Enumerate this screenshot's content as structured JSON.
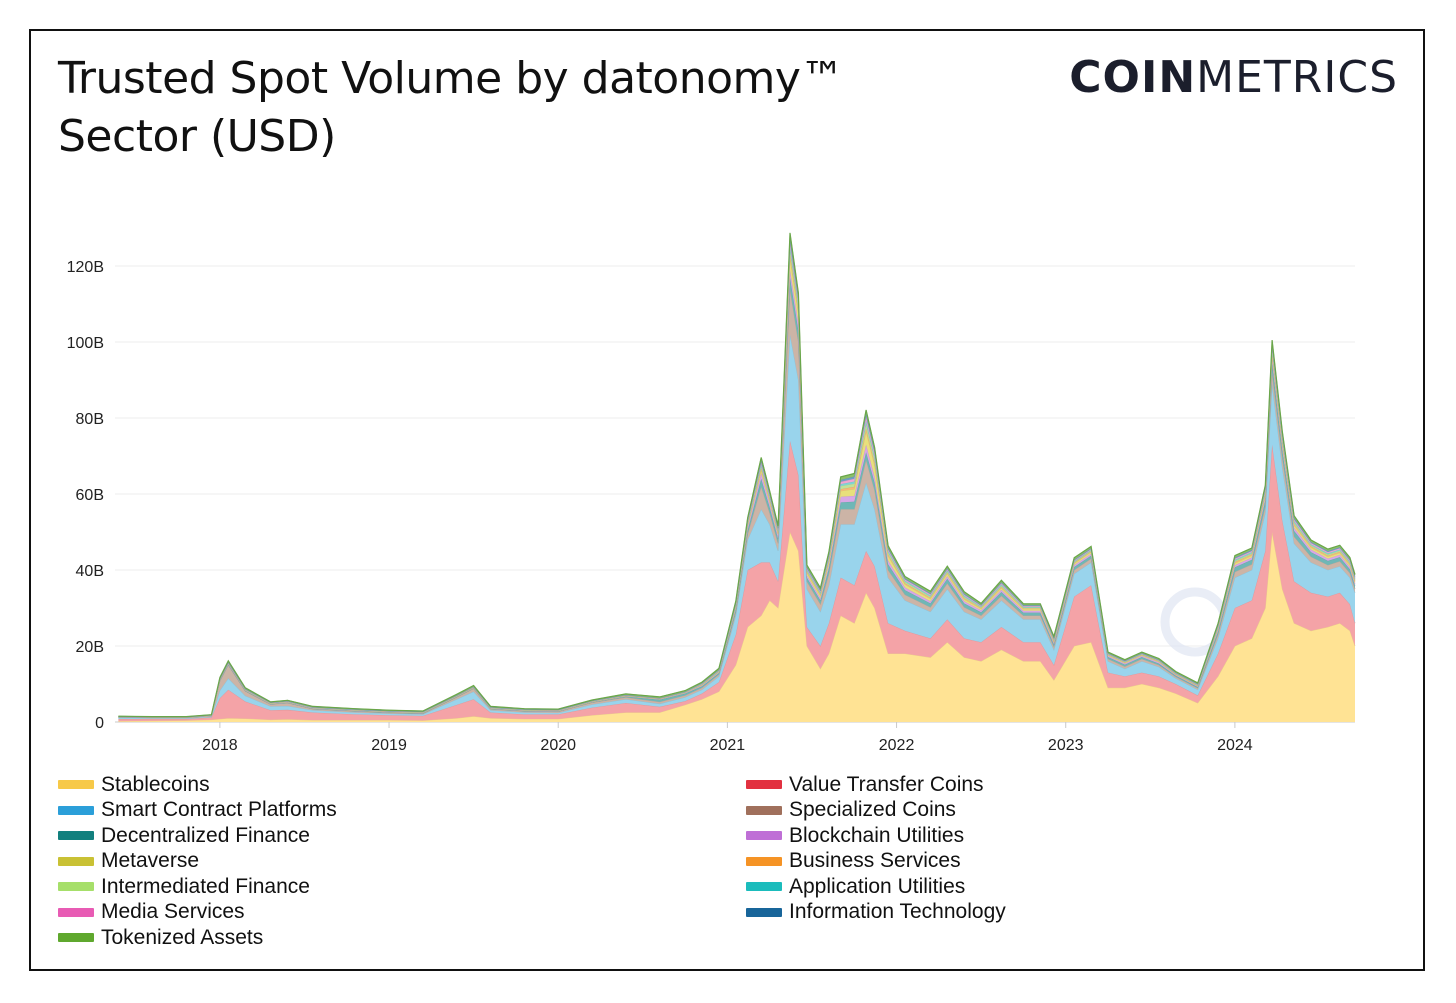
{
  "title": "Trusted Spot Volume by datonomy™ Sector (USD)",
  "logo": {
    "bold": "COIN",
    "light": "METRICS"
  },
  "chart_data": {
    "type": "area",
    "stacked": true,
    "title": "Trusted Spot Volume by datonomy™ Sector (USD)",
    "xlabel": "",
    "ylabel": "",
    "xlim": [
      2017.38,
      2024.71
    ],
    "ylim": [
      0,
      140
    ],
    "y_unit": "B",
    "y_ticks": [
      0,
      20,
      40,
      60,
      80,
      100,
      120
    ],
    "y_tick_labels": [
      "0",
      "20B",
      "40B",
      "60B",
      "80B",
      "100B",
      "120B"
    ],
    "x_ticks": [
      2018,
      2019,
      2020,
      2021,
      2022,
      2023,
      2024
    ],
    "x_tick_labels": [
      "2018",
      "2019",
      "2020",
      "2021",
      "2022",
      "2023",
      "2024"
    ],
    "grid": "horizontal",
    "legend_placement": "bottom",
    "x": [
      2017.4,
      2017.6,
      2017.8,
      2017.95,
      2018.0,
      2018.05,
      2018.15,
      2018.3,
      2018.4,
      2018.55,
      2018.8,
      2019.0,
      2019.2,
      2019.4,
      2019.5,
      2019.6,
      2019.8,
      2020.0,
      2020.2,
      2020.4,
      2020.6,
      2020.75,
      2020.85,
      2020.95,
      2021.05,
      2021.12,
      2021.2,
      2021.25,
      2021.3,
      2021.37,
      2021.42,
      2021.47,
      2021.55,
      2021.6,
      2021.67,
      2021.75,
      2021.82,
      2021.87,
      2021.95,
      2022.05,
      2022.2,
      2022.3,
      2022.4,
      2022.5,
      2022.62,
      2022.75,
      2022.85,
      2022.93,
      2023.05,
      2023.15,
      2023.25,
      2023.35,
      2023.45,
      2023.55,
      2023.65,
      2023.78,
      2023.9,
      2024.0,
      2024.1,
      2024.18,
      2024.22,
      2024.28,
      2024.35,
      2024.45,
      2024.55,
      2024.62,
      2024.68,
      2024.71
    ],
    "series": [
      {
        "name": "Stablecoins",
        "color": "#ffe394",
        "values": [
          0.2,
          0.3,
          0.4,
          0.6,
          0.8,
          1.0,
          0.9,
          0.6,
          0.7,
          0.5,
          0.5,
          0.5,
          0.4,
          1.0,
          1.5,
          1.0,
          0.8,
          0.8,
          1.8,
          2.5,
          2.5,
          4.5,
          6,
          8,
          15,
          25,
          28,
          32,
          30,
          50,
          45,
          20,
          14,
          18,
          28,
          26,
          34,
          30,
          18,
          18,
          17,
          21,
          17,
          16,
          19,
          16,
          16,
          11,
          20,
          21,
          9,
          9,
          10,
          9,
          7.5,
          5,
          12,
          20,
          22,
          30,
          50,
          35,
          26,
          24,
          25,
          26,
          24,
          20
        ]
      },
      {
        "name": "Value Transfer Coins",
        "color": "#f4a3a7",
        "values": [
          0.6,
          0.5,
          0.4,
          0.6,
          5.5,
          7.5,
          4.5,
          2.5,
          2.5,
          2.0,
          1.5,
          1.3,
          1.2,
          3.5,
          4.5,
          1.5,
          1.2,
          1.2,
          2.0,
          2.5,
          1.5,
          1.0,
          1.5,
          2.5,
          8,
          15,
          14,
          10,
          7,
          24,
          20,
          5,
          6,
          8,
          10,
          10,
          11,
          11,
          8,
          6,
          5,
          6,
          5,
          5,
          6,
          5,
          5,
          4,
          13,
          15,
          4,
          3,
          3,
          3,
          2.5,
          2,
          6,
          10,
          10,
          15,
          23,
          18,
          11,
          10,
          8,
          8,
          7,
          6
        ]
      },
      {
        "name": "Smart Contract Platforms",
        "color": "#99d4ec",
        "values": [
          0.3,
          0.2,
          0.2,
          0.2,
          2.0,
          3.0,
          1.5,
          1.0,
          1.0,
          0.6,
          0.5,
          0.4,
          0.4,
          1.5,
          2.0,
          0.6,
          0.5,
          0.4,
          0.8,
          1.0,
          0.8,
          1.0,
          1.0,
          1.5,
          5,
          8,
          14,
          10,
          8,
          28,
          25,
          10,
          9,
          10,
          14,
          16,
          18,
          15,
          12,
          8,
          7,
          8,
          7,
          6,
          7,
          6,
          6,
          4,
          6,
          6,
          3,
          2,
          3,
          2.5,
          1.5,
          1.5,
          4,
          8,
          8,
          10,
          16,
          14,
          10,
          8,
          7,
          7,
          7,
          8
        ]
      },
      {
        "name": "Specialized Coins",
        "color": "#ccb4a6",
        "values": [
          0.1,
          0.1,
          0.1,
          0.2,
          2.5,
          3.5,
          1.2,
          0.5,
          0.8,
          0.3,
          0.3,
          0.2,
          0.2,
          0.5,
          0.8,
          0.3,
          0.3,
          0.3,
          0.5,
          0.5,
          0.5,
          0.5,
          0.5,
          0.5,
          0.8,
          1.5,
          6,
          3,
          2,
          12,
          10,
          2,
          2,
          3,
          4,
          4,
          6,
          5,
          2,
          1.5,
          1.2,
          1.5,
          1.2,
          1.0,
          1.2,
          1.0,
          1.0,
          0.8,
          1.0,
          1.0,
          0.6,
          0.6,
          0.6,
          0.5,
          0.4,
          0.4,
          1.0,
          1.5,
          1.5,
          1.8,
          3,
          2.5,
          1.8,
          1.5,
          1.3,
          1.3,
          1.2,
          1.0
        ]
      },
      {
        "name": "Decentralized Finance",
        "color": "#6fb7b6",
        "values": [
          0.05,
          0.05,
          0.05,
          0.05,
          0.1,
          0.1,
          0.1,
          0.1,
          0.1,
          0.1,
          0.1,
          0.1,
          0.1,
          0.1,
          0.1,
          0.1,
          0.1,
          0.1,
          0.1,
          0.2,
          0.6,
          0.5,
          0.4,
          0.4,
          0.8,
          1.0,
          2.0,
          1.5,
          1.2,
          3,
          3,
          1,
          1,
          1.5,
          1.8,
          2,
          2,
          2,
          1.5,
          1.2,
          1.0,
          1.2,
          1.0,
          0.9,
          1.0,
          0.8,
          0.8,
          0.6,
          0.8,
          0.8,
          0.5,
          0.5,
          0.5,
          0.4,
          0.3,
          0.3,
          0.8,
          1.2,
          1.2,
          1.5,
          2.5,
          2,
          1.5,
          1.2,
          1.1,
          1.1,
          1.0,
          0.9
        ]
      },
      {
        "name": "Blockchain Utilities",
        "color": "#d8a7e6",
        "values": [
          0.05,
          0.05,
          0.05,
          0.05,
          0.2,
          0.3,
          0.2,
          0.1,
          0.1,
          0.1,
          0.1,
          0.1,
          0.1,
          0.1,
          0.1,
          0.1,
          0.1,
          0.1,
          0.1,
          0.1,
          0.1,
          0.1,
          0.2,
          0.2,
          0.5,
          0.8,
          1.5,
          1.0,
          0.8,
          2.0,
          2.0,
          0.6,
          0.6,
          0.8,
          1.5,
          1.5,
          2.0,
          1.5,
          1.0,
          0.7,
          0.6,
          0.7,
          0.6,
          0.5,
          0.6,
          0.5,
          0.5,
          0.4,
          0.5,
          0.5,
          0.3,
          0.3,
          0.3,
          0.3,
          0.2,
          0.2,
          0.4,
          0.6,
          0.6,
          0.8,
          1.2,
          1.0,
          0.8,
          0.7,
          0.6,
          0.6,
          0.6,
          0.5
        ]
      },
      {
        "name": "Metaverse",
        "color": "#e8e07c",
        "values": [
          0.02,
          0.02,
          0.02,
          0.02,
          0.05,
          0.05,
          0.05,
          0.05,
          0.05,
          0.05,
          0.05,
          0.05,
          0.05,
          0.05,
          0.05,
          0.05,
          0.05,
          0.05,
          0.05,
          0.05,
          0.05,
          0.1,
          0.1,
          0.1,
          0.2,
          0.4,
          0.8,
          0.6,
          0.5,
          3.0,
          2.5,
          0.6,
          0.6,
          0.8,
          1.5,
          1.8,
          3.5,
          3.0,
          1.2,
          0.8,
          0.6,
          0.6,
          0.5,
          0.4,
          0.5,
          0.4,
          0.4,
          0.3,
          0.4,
          0.4,
          0.2,
          0.2,
          0.2,
          0.2,
          0.1,
          0.1,
          0.3,
          0.5,
          0.5,
          0.6,
          1.0,
          0.8,
          0.6,
          0.5,
          0.5,
          0.5,
          0.5,
          0.4
        ]
      },
      {
        "name": "Business Services",
        "color": "#f6b978",
        "values": [
          0.02,
          0.02,
          0.02,
          0.02,
          0.05,
          0.05,
          0.05,
          0.05,
          0.05,
          0.05,
          0.05,
          0.05,
          0.05,
          0.05,
          0.05,
          0.05,
          0.05,
          0.05,
          0.05,
          0.05,
          0.05,
          0.05,
          0.1,
          0.1,
          0.2,
          0.3,
          0.5,
          0.4,
          0.3,
          1.0,
          0.8,
          0.3,
          0.3,
          0.4,
          0.5,
          0.6,
          0.8,
          0.7,
          0.4,
          0.3,
          0.3,
          0.3,
          0.3,
          0.2,
          0.3,
          0.2,
          0.2,
          0.2,
          0.2,
          0.2,
          0.1,
          0.1,
          0.1,
          0.1,
          0.1,
          0.1,
          0.2,
          0.3,
          0.3,
          0.4,
          0.6,
          0.5,
          0.4,
          0.3,
          0.3,
          0.3,
          0.3,
          0.3
        ]
      },
      {
        "name": "Intermediated Finance",
        "color": "#bfe39a",
        "values": [
          0.02,
          0.02,
          0.02,
          0.02,
          0.05,
          0.05,
          0.05,
          0.05,
          0.05,
          0.05,
          0.05,
          0.05,
          0.05,
          0.05,
          0.05,
          0.05,
          0.05,
          0.05,
          0.05,
          0.05,
          0.05,
          0.05,
          0.1,
          0.1,
          0.2,
          0.3,
          0.5,
          0.4,
          0.3,
          1.2,
          1.0,
          0.3,
          0.3,
          0.4,
          0.8,
          0.8,
          1.2,
          1.0,
          0.5,
          0.4,
          0.3,
          0.3,
          0.3,
          0.2,
          0.3,
          0.2,
          0.2,
          0.2,
          0.2,
          0.2,
          0.1,
          0.1,
          0.1,
          0.1,
          0.1,
          0.1,
          0.2,
          0.3,
          0.3,
          0.4,
          0.6,
          0.5,
          0.4,
          0.3,
          0.3,
          0.3,
          0.3,
          0.3
        ]
      },
      {
        "name": "Application Utilities",
        "color": "#7fd5d5",
        "values": [
          0.02,
          0.02,
          0.02,
          0.02,
          0.05,
          0.05,
          0.05,
          0.05,
          0.05,
          0.05,
          0.05,
          0.05,
          0.05,
          0.05,
          0.05,
          0.05,
          0.05,
          0.05,
          0.05,
          0.05,
          0.05,
          0.05,
          0.1,
          0.1,
          0.2,
          0.3,
          0.5,
          0.4,
          0.3,
          1.0,
          0.8,
          0.3,
          0.3,
          0.4,
          0.5,
          0.6,
          0.8,
          0.7,
          0.4,
          0.3,
          0.3,
          0.3,
          0.3,
          0.2,
          0.3,
          0.2,
          0.2,
          0.2,
          0.2,
          0.2,
          0.1,
          0.1,
          0.1,
          0.1,
          0.1,
          0.1,
          0.2,
          0.3,
          0.3,
          0.4,
          0.6,
          0.5,
          0.4,
          0.3,
          0.3,
          0.3,
          0.3,
          0.3
        ]
      },
      {
        "name": "Media Services",
        "color": "#f2a6d2",
        "values": [
          0.02,
          0.02,
          0.02,
          0.02,
          0.05,
          0.05,
          0.05,
          0.05,
          0.05,
          0.05,
          0.05,
          0.05,
          0.05,
          0.05,
          0.05,
          0.05,
          0.05,
          0.05,
          0.05,
          0.05,
          0.05,
          0.05,
          0.1,
          0.1,
          0.2,
          0.3,
          0.5,
          0.4,
          0.3,
          1.0,
          0.8,
          0.3,
          0.3,
          0.4,
          0.6,
          0.7,
          1.0,
          0.8,
          0.4,
          0.3,
          0.3,
          0.3,
          0.3,
          0.2,
          0.3,
          0.2,
          0.2,
          0.2,
          0.2,
          0.2,
          0.1,
          0.1,
          0.1,
          0.1,
          0.1,
          0.1,
          0.2,
          0.3,
          0.3,
          0.4,
          0.6,
          0.5,
          0.4,
          0.3,
          0.3,
          0.3,
          0.3,
          0.3
        ]
      },
      {
        "name": "Information Technology",
        "color": "#6f9fc4",
        "values": [
          0.02,
          0.02,
          0.02,
          0.02,
          0.05,
          0.05,
          0.05,
          0.05,
          0.05,
          0.05,
          0.05,
          0.05,
          0.05,
          0.05,
          0.05,
          0.05,
          0.05,
          0.05,
          0.05,
          0.05,
          0.05,
          0.05,
          0.1,
          0.1,
          0.2,
          0.3,
          0.5,
          0.4,
          0.3,
          1.0,
          0.8,
          0.3,
          0.3,
          0.4,
          0.5,
          0.6,
          0.8,
          0.7,
          0.4,
          0.3,
          0.3,
          0.3,
          0.3,
          0.2,
          0.3,
          0.2,
          0.2,
          0.2,
          0.2,
          0.2,
          0.1,
          0.1,
          0.1,
          0.1,
          0.1,
          0.1,
          0.2,
          0.3,
          0.3,
          0.4,
          0.6,
          0.5,
          0.4,
          0.3,
          0.3,
          0.3,
          0.3,
          0.3
        ]
      },
      {
        "name": "Tokenized Assets",
        "color": "#8cc06a",
        "values": [
          0.1,
          0.1,
          0.1,
          0.1,
          0.3,
          0.4,
          0.3,
          0.2,
          0.2,
          0.2,
          0.2,
          0.2,
          0.2,
          0.3,
          0.3,
          0.2,
          0.2,
          0.2,
          0.2,
          0.3,
          0.3,
          0.3,
          0.3,
          0.4,
          0.5,
          0.6,
          0.8,
          0.7,
          0.6,
          1.5,
          1.2,
          0.6,
          0.6,
          0.7,
          0.8,
          0.8,
          1.0,
          0.9,
          0.6,
          0.5,
          0.5,
          0.5,
          0.5,
          0.4,
          0.5,
          0.4,
          0.4,
          0.4,
          0.5,
          0.5,
          0.3,
          0.3,
          0.3,
          0.3,
          0.3,
          0.3,
          0.4,
          0.5,
          0.5,
          0.6,
          0.8,
          0.7,
          0.6,
          0.5,
          0.5,
          0.5,
          0.5,
          0.5
        ]
      }
    ]
  },
  "legend": {
    "left": [
      {
        "label": "Stablecoins",
        "color": "#f7c948"
      },
      {
        "label": "Smart Contract Platforms",
        "color": "#2b9fd9"
      },
      {
        "label": "Decentralized Finance",
        "color": "#12807e"
      },
      {
        "label": "Metaverse",
        "color": "#c9c134"
      },
      {
        "label": "Intermediated Finance",
        "color": "#a6df6a"
      },
      {
        "label": "Media Services",
        "color": "#e85bb4"
      },
      {
        "label": "Tokenized Assets",
        "color": "#5fa82e"
      }
    ],
    "right": [
      {
        "label": "Value Transfer Coins",
        "color": "#e23140"
      },
      {
        "label": "Specialized Coins",
        "color": "#a0705c"
      },
      {
        "label": "Blockchain Utilities",
        "color": "#bf6fd6"
      },
      {
        "label": "Business Services",
        "color": "#f59325"
      },
      {
        "label": "Application Utilities",
        "color": "#1bbcbc"
      },
      {
        "label": "Information Technology",
        "color": "#18659a"
      }
    ]
  }
}
